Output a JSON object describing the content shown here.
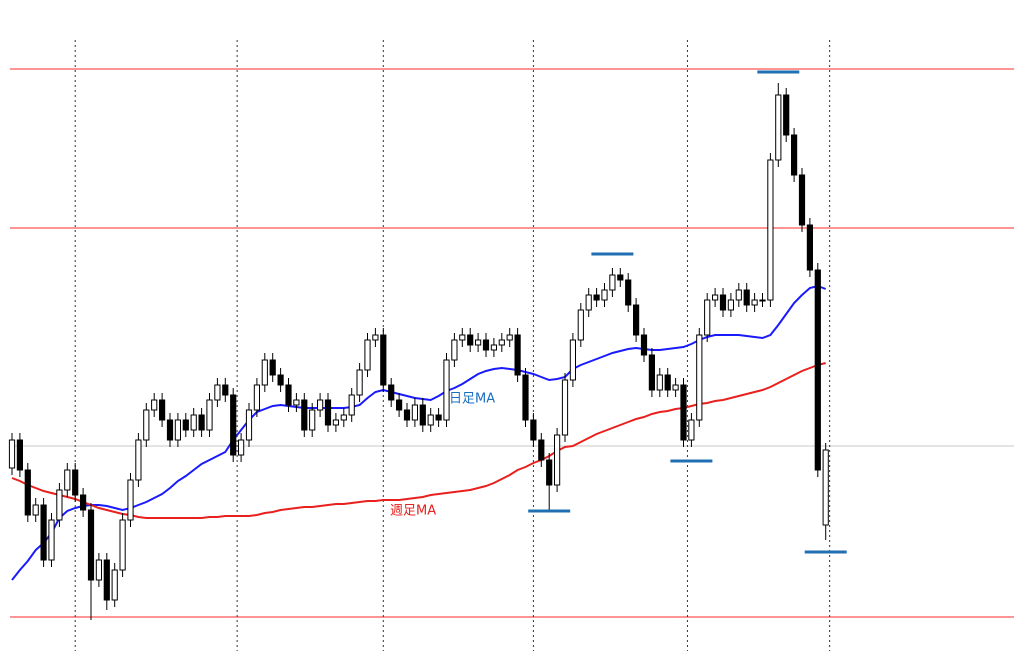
{
  "chart_data": {
    "type": "candlestick",
    "ylim": [
      0,
      671
    ],
    "open": [
      203,
      231,
      201,
      156,
      166,
      111,
      151,
      181,
      201,
      176,
      161,
      91,
      111,
      71,
      101,
      151,
      191,
      231,
      261,
      271,
      251,
      231,
      251,
      241,
      256,
      241,
      271,
      286,
      276,
      216,
      231,
      261,
      286,
      311,
      296,
      286,
      266,
      271,
      241,
      261,
      271,
      246,
      251,
      256,
      276,
      301,
      331,
      336,
      286,
      271,
      261,
      251,
      266,
      246,
      256,
      251,
      311,
      331,
      336,
      326,
      331,
      321,
      326,
      331,
      336,
      296,
      251,
      231,
      211,
      186,
      236,
      291,
      331,
      361,
      376,
      371,
      381,
      396,
      391,
      366,
      336,
      316,
      281,
      296,
      281,
      286,
      231,
      251,
      336,
      371,
      376,
      361,
      371,
      381,
      366,
      371,
      371,
      511,
      576,
      536,
      496,
      446,
      401,
      146
    ],
    "high": [
      238,
      238,
      208,
      173,
      173,
      158,
      188,
      208,
      208,
      183,
      168,
      118,
      118,
      108,
      158,
      198,
      238,
      268,
      278,
      278,
      258,
      258,
      258,
      263,
      263,
      278,
      293,
      293,
      283,
      238,
      268,
      293,
      318,
      318,
      303,
      293,
      278,
      278,
      268,
      278,
      278,
      258,
      263,
      283,
      308,
      338,
      343,
      343,
      293,
      278,
      268,
      273,
      273,
      263,
      263,
      318,
      338,
      343,
      343,
      338,
      338,
      333,
      338,
      343,
      343,
      303,
      258,
      238,
      218,
      243,
      298,
      338,
      368,
      383,
      383,
      388,
      403,
      403,
      398,
      373,
      343,
      323,
      303,
      303,
      293,
      293,
      258,
      343,
      378,
      383,
      383,
      378,
      388,
      388,
      378,
      378,
      518,
      588,
      583,
      543,
      503,
      453,
      408,
      228
    ],
    "low": [
      196,
      194,
      149,
      149,
      104,
      104,
      144,
      174,
      169,
      154,
      51,
      84,
      61,
      64,
      94,
      144,
      184,
      224,
      254,
      244,
      224,
      224,
      234,
      234,
      234,
      234,
      264,
      269,
      209,
      209,
      224,
      254,
      279,
      289,
      279,
      259,
      259,
      234,
      234,
      254,
      239,
      239,
      244,
      249,
      269,
      294,
      324,
      279,
      264,
      254,
      244,
      244,
      239,
      239,
      244,
      244,
      304,
      324,
      319,
      319,
      314,
      314,
      319,
      324,
      289,
      244,
      224,
      204,
      161,
      179,
      229,
      284,
      324,
      354,
      364,
      364,
      374,
      384,
      359,
      329,
      309,
      274,
      274,
      274,
      274,
      224,
      224,
      244,
      329,
      364,
      354,
      354,
      364,
      359,
      359,
      364,
      364,
      504,
      529,
      489,
      439,
      394,
      194,
      131
    ],
    "close": [
      231,
      201,
      156,
      166,
      111,
      151,
      181,
      201,
      176,
      161,
      91,
      111,
      71,
      101,
      151,
      191,
      231,
      261,
      271,
      251,
      231,
      251,
      241,
      256,
      241,
      271,
      286,
      276,
      216,
      231,
      261,
      286,
      311,
      296,
      286,
      266,
      271,
      241,
      261,
      271,
      246,
      251,
      256,
      276,
      301,
      331,
      336,
      286,
      271,
      261,
      251,
      266,
      246,
      256,
      251,
      311,
      331,
      336,
      326,
      331,
      321,
      326,
      331,
      336,
      296,
      251,
      231,
      211,
      186,
      236,
      291,
      331,
      361,
      376,
      371,
      381,
      396,
      391,
      366,
      336,
      316,
      281,
      296,
      281,
      286,
      231,
      251,
      336,
      371,
      376,
      361,
      371,
      381,
      366,
      371,
      371,
      511,
      576,
      536,
      496,
      446,
      401,
      201,
      221
    ],
    "series": [
      {
        "name": "日足MA",
        "color": "#1a1aff",
        "values": [
          91,
          101,
          110,
          121,
          128,
          138,
          153,
          160,
          163,
          165,
          166,
          166,
          165,
          163,
          161,
          163,
          166,
          169,
          173,
          177,
          183,
          190,
          195,
          201,
          207,
          211,
          215,
          219,
          231,
          241,
          251,
          259,
          262,
          265,
          266,
          265,
          264,
          263,
          263,
          263,
          263,
          263,
          263,
          264,
          266,
          273,
          279,
          281,
          279,
          277,
          275,
          273,
          272,
          271,
          275,
          280,
          283,
          287,
          292,
          297,
          300,
          302,
          303,
          302,
          301,
          299,
          297,
          294,
          291,
          292,
          294,
          302,
          306,
          309,
          312,
          315,
          318,
          320,
          322,
          323,
          322,
          321,
          321,
          322,
          323,
          324,
          327,
          331,
          334,
          336,
          336,
          336,
          336,
          335,
          334,
          333,
          336,
          346,
          357,
          368,
          376,
          383,
          385,
          382
        ]
      },
      {
        "name": "週足MA",
        "color": "#e8201e",
        "values": [
          193,
          190,
          186,
          183,
          180,
          178,
          176,
          174,
          172,
          169,
          166,
          163,
          161,
          159,
          157,
          156,
          154,
          153,
          153,
          153,
          153,
          153,
          153,
          153,
          153,
          154,
          154,
          155,
          155,
          155,
          155,
          156,
          158,
          159,
          161,
          162,
          163,
          164,
          164,
          165,
          166,
          167,
          167,
          168,
          169,
          170,
          170,
          171,
          171,
          171,
          172,
          173,
          174,
          176,
          177,
          178,
          179,
          180,
          181,
          183,
          185,
          188,
          192,
          196,
          201,
          204,
          208,
          211,
          215,
          220,
          224,
          225,
          229,
          233,
          237,
          240,
          243,
          246,
          249,
          252,
          254,
          257,
          259,
          260,
          262,
          263,
          265,
          267,
          268,
          270,
          271,
          273,
          275,
          277,
          279,
          281,
          284,
          288,
          292,
          296,
          300,
          303,
          306,
          308
        ]
      }
    ],
    "levels": [
      602,
      443,
      54
    ],
    "level_color": "#ff2a2a",
    "price_line": 225,
    "separators": [
      8,
      28.5,
      47,
      66,
      85.5,
      103.5
    ],
    "markers": [
      {
        "value": 599,
        "candle": 97
      },
      {
        "value": 417,
        "candle": 76
      },
      {
        "value": 210,
        "candle": 86
      },
      {
        "value": 160,
        "candle": 68
      },
      {
        "value": 119,
        "candle": 103
      }
    ],
    "marker_color": "#1f6fb2"
  }
}
